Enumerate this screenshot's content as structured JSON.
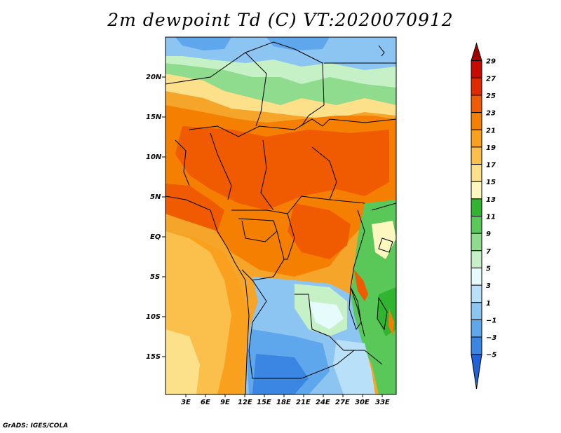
{
  "title": "2m dewpoint Td (C) VT:2020070912",
  "footer": "GrADS: IGES/COLA",
  "map": {
    "lon_labels": [
      "3E",
      "6E",
      "9E",
      "12E",
      "15E",
      "18E",
      "21E",
      "24E",
      "27E",
      "30E",
      "33E"
    ],
    "lat_labels": [
      "20N",
      "15N",
      "10N",
      "5N",
      "EQ",
      "5S",
      "10S",
      "15S"
    ]
  },
  "colorbar": {
    "labels": [
      "29",
      "27",
      "25",
      "23",
      "21",
      "19",
      "17",
      "15",
      "13",
      "11",
      "9",
      "7",
      "5",
      "3",
      "1",
      "−1",
      "−3",
      "−5"
    ],
    "colors": [
      "#a50000",
      "#c80a00",
      "#e02a00",
      "#f05a00",
      "#f57f00",
      "#f9a01e",
      "#fbbf4c",
      "#fce08a",
      "#fff7c0",
      "#31b531",
      "#59c859",
      "#8fdc8f",
      "#c6f0c6",
      "#e6fbfb",
      "#b8e0f8",
      "#8cc4f2",
      "#5fa7ec",
      "#3a86e2",
      "#1f63d6"
    ]
  }
}
